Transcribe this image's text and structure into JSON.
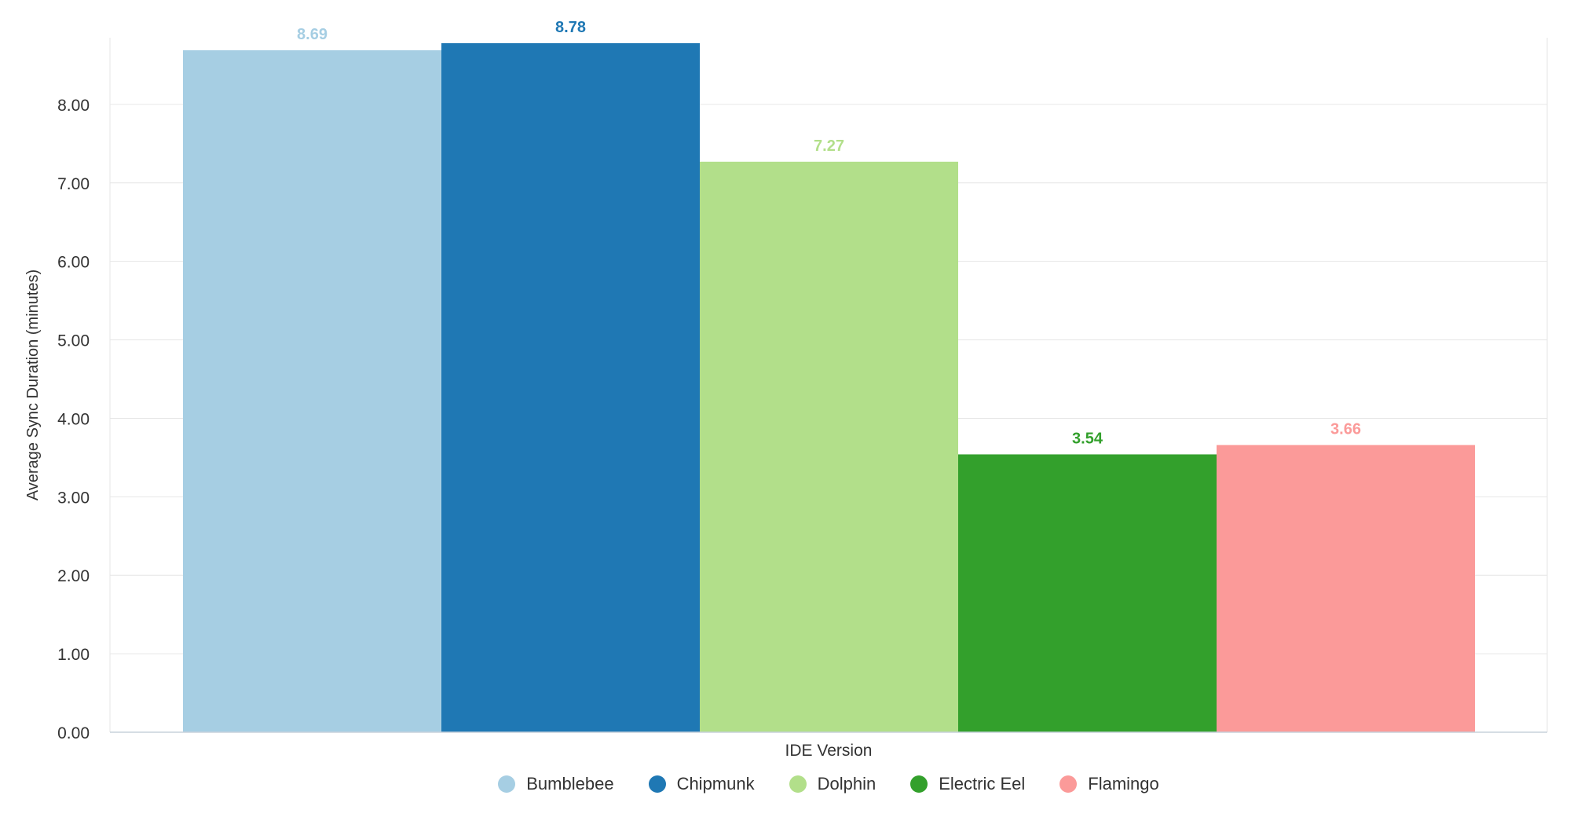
{
  "chart_data": {
    "type": "bar",
    "title": "",
    "xlabel": "IDE Version",
    "ylabel": "Average Sync Duration (minutes)",
    "ylim": [
      0,
      8.85
    ],
    "yticks": [
      "0.00",
      "1.00",
      "2.00",
      "3.00",
      "4.00",
      "5.00",
      "6.00",
      "7.00",
      "8.00"
    ],
    "grid": true,
    "legend_position": "bottom",
    "categories": [
      "Bumblebee",
      "Chipmunk",
      "Dolphin",
      "Electric Eel",
      "Flamingo"
    ],
    "values": [
      8.69,
      8.78,
      7.27,
      3.54,
      3.66
    ],
    "value_labels": [
      "8.69",
      "8.78",
      "7.27",
      "3.54",
      "3.66"
    ],
    "colors": [
      "#a6cee3",
      "#1f78b4",
      "#b2df8a",
      "#33a02c",
      "#fb9a99"
    ]
  }
}
